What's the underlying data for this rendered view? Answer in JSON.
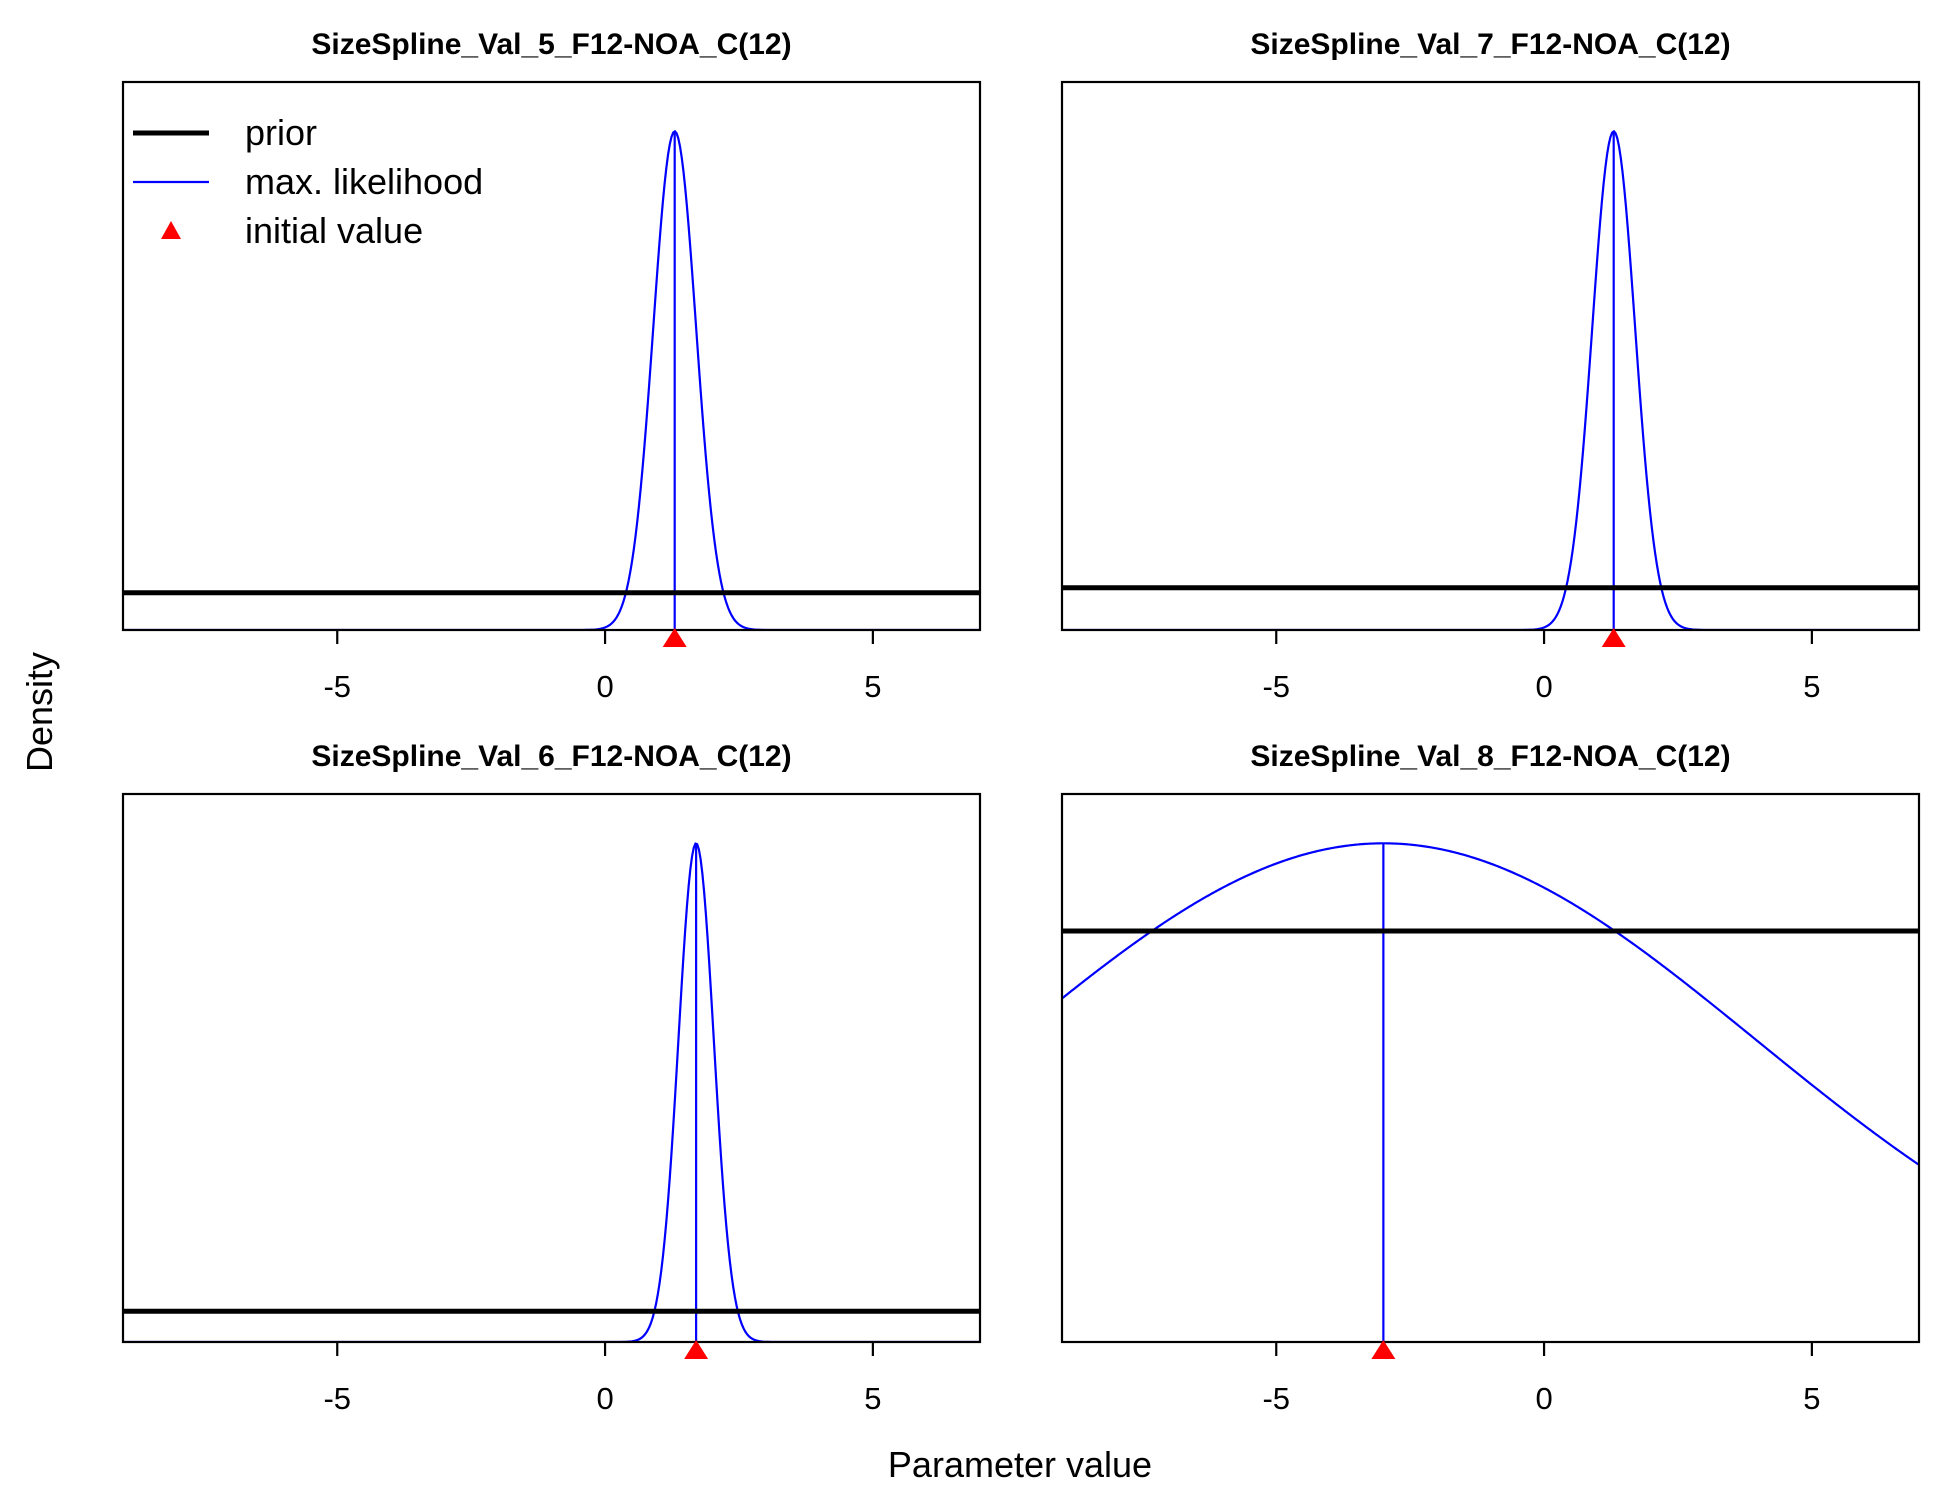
{
  "figure": {
    "xlabel": "Parameter value",
    "ylabel": "Density"
  },
  "legend": {
    "placement": "top-left of first panel",
    "items": [
      {
        "label": "prior",
        "symbol": "thick-line",
        "color": "#000000"
      },
      {
        "label": "max. likelihood",
        "symbol": "thin-line",
        "color": "#0000ff"
      },
      {
        "label": "initial value",
        "symbol": "triangle-marker",
        "color": "#ff0000"
      }
    ]
  },
  "colors": {
    "prior": "#000000",
    "max_likelihood": "#0000ff",
    "initial_value": "#ff0000"
  },
  "chart_data": [
    {
      "type": "line",
      "title": "SizeSpline_Val_5_F12-NOA_C(12)",
      "xlim": [
        -9,
        7
      ],
      "xticks": [
        -5,
        0,
        5
      ],
      "tick_labels": [
        "-5",
        "0",
        "5"
      ],
      "prior_level": 0.068,
      "mle": 1.3,
      "sd": 0.4,
      "peak_level": 0.91,
      "initial_value": 1.3
    },
    {
      "type": "line",
      "title": "SizeSpline_Val_7_F12-NOA_C(12)",
      "xlim": [
        -9,
        7
      ],
      "xticks": [
        -5,
        0,
        5
      ],
      "tick_labels": [
        "-5",
        "0",
        "5"
      ],
      "prior_level": 0.077,
      "mle": 1.3,
      "sd": 0.4,
      "peak_level": 0.91,
      "initial_value": 1.3
    },
    {
      "type": "line",
      "title": "SizeSpline_Val_6_F12-NOA_C(12)",
      "xlim": [
        -9,
        7
      ],
      "xticks": [
        -5,
        0,
        5
      ],
      "tick_labels": [
        "-5",
        "0",
        "5"
      ],
      "prior_level": 0.056,
      "mle": 1.7,
      "sd": 0.33,
      "peak_level": 0.91,
      "initial_value": 1.7
    },
    {
      "type": "line",
      "title": "SizeSpline_Val_8_F12-NOA_C(12)",
      "xlim": [
        -9,
        7
      ],
      "xticks": [
        -5,
        0,
        5
      ],
      "tick_labels": [
        "-5",
        "0",
        "5"
      ],
      "prior_level": 0.75,
      "mle": -3,
      "sd": 6.95,
      "peak_level": 0.91,
      "initial_value": -3
    }
  ]
}
